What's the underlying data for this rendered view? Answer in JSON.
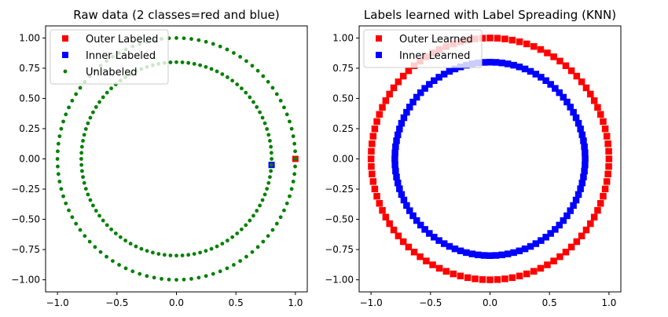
{
  "chart_data": [
    {
      "type": "scatter",
      "title": "Raw data (2 classes=red and blue)",
      "xlim": [
        -1.1,
        1.1
      ],
      "ylim": [
        -1.1,
        1.1
      ],
      "xticks": [
        "−1.0",
        "−0.5",
        "0.0",
        "0.5",
        "1.0"
      ],
      "yticks": [
        "1.00",
        "0.75",
        "0.50",
        "0.25",
        "0.00",
        "−0.25",
        "−0.50",
        "−0.75",
        "−1.00"
      ],
      "legend_location": "top-left",
      "grid": false,
      "series": [
        {
          "name": "Outer Labeled",
          "marker": "square",
          "color": "#ff0000",
          "x": [
            1.0
          ],
          "y": [
            0.0
          ]
        },
        {
          "name": "Inner Labeled",
          "marker": "square",
          "color": "#0000ff",
          "x": [
            0.8
          ],
          "y": [
            -0.05
          ]
        },
        {
          "name": "Unlabeled",
          "marker": "circle",
          "color": "#008000",
          "description": "100 points on outer circle (radius 1.0) and 100 points on inner circle (radius 0.8)",
          "circles": [
            {
              "radius": 1.0,
              "count": 100
            },
            {
              "radius": 0.8,
              "count": 100
            }
          ]
        }
      ]
    },
    {
      "type": "scatter",
      "title": "Labels learned with Label Spreading (KNN)",
      "xlim": [
        -1.1,
        1.1
      ],
      "ylim": [
        -1.1,
        1.1
      ],
      "xticks": [
        "−1.0",
        "−0.5",
        "0.0",
        "0.5",
        "1.0"
      ],
      "yticks": [
        "1.00",
        "0.75",
        "0.50",
        "0.25",
        "0.00",
        "−0.25",
        "−0.50",
        "−0.75",
        "−1.00"
      ],
      "legend_location": "top-left",
      "grid": false,
      "series": [
        {
          "name": "Outer Learned",
          "marker": "square",
          "color": "#ff0000",
          "circles": [
            {
              "radius": 1.0,
              "count": 100
            }
          ]
        },
        {
          "name": "Inner Learned",
          "marker": "square",
          "color": "#0000ff",
          "circles": [
            {
              "radius": 0.8,
              "count": 100
            }
          ]
        }
      ]
    }
  ]
}
